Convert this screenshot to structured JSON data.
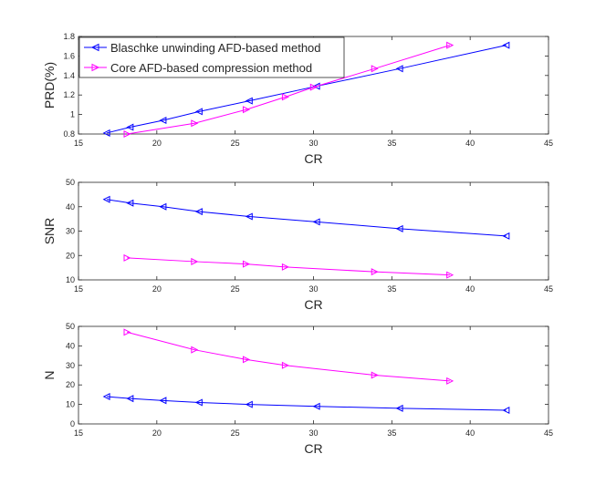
{
  "chart_data": [
    {
      "type": "line",
      "xlabel": "CR",
      "ylabel": "PRD(%)",
      "xlim": [
        15,
        45
      ],
      "ylim": [
        0.8,
        1.8
      ],
      "xticks": [
        "15",
        "20",
        "25",
        "30",
        "35",
        "40",
        "45"
      ],
      "yticks": [
        "0.8",
        "1",
        "1.2",
        "1.4",
        "1.6",
        "1.8"
      ],
      "grid": false,
      "legend": "top-left",
      "series": [
        {
          "name": "Blaschke unwinding AFD-based method",
          "color": "#0000ff",
          "marker": "triangle-left",
          "x": [
            16.8,
            18.3,
            20.4,
            22.7,
            25.9,
            30.2,
            35.5,
            42.3
          ],
          "y": [
            0.81,
            0.87,
            0.94,
            1.03,
            1.14,
            1.29,
            1.47,
            1.71
          ]
        },
        {
          "name": "Core AFD-based compression method",
          "color": "#ff00ff",
          "marker": "triangle-right",
          "x": [
            18.1,
            22.4,
            25.7,
            28.2,
            30.0,
            33.9,
            38.7
          ],
          "y": [
            0.8,
            0.91,
            1.05,
            1.18,
            1.28,
            1.47,
            1.71
          ]
        }
      ]
    },
    {
      "type": "line",
      "xlabel": "CR",
      "ylabel": "SNR",
      "xlim": [
        15,
        45
      ],
      "ylim": [
        10,
        50
      ],
      "xticks": [
        "15",
        "20",
        "25",
        "30",
        "35",
        "40",
        "45"
      ],
      "yticks": [
        "10",
        "20",
        "30",
        "40",
        "50"
      ],
      "grid": false,
      "series": [
        {
          "color": "#0000ff",
          "marker": "triangle-left",
          "x": [
            16.8,
            18.3,
            20.4,
            22.7,
            25.9,
            30.2,
            35.5,
            42.3
          ],
          "y": [
            43,
            41.5,
            40,
            38,
            36,
            33.8,
            31,
            28
          ]
        },
        {
          "color": "#ff00ff",
          "marker": "triangle-right",
          "x": [
            18.1,
            22.4,
            25.7,
            28.2,
            33.9,
            38.7
          ],
          "y": [
            19,
            17.5,
            16.5,
            15.3,
            13.3,
            12
          ]
        }
      ]
    },
    {
      "type": "line",
      "xlabel": "CR",
      "ylabel": "N",
      "xlim": [
        15,
        45
      ],
      "ylim": [
        0,
        50
      ],
      "xticks": [
        "15",
        "20",
        "25",
        "30",
        "35",
        "40",
        "45"
      ],
      "yticks": [
        "0",
        "10",
        "20",
        "30",
        "40",
        "50"
      ],
      "grid": false,
      "series": [
        {
          "color": "#0000ff",
          "marker": "triangle-left",
          "x": [
            16.8,
            18.3,
            20.4,
            22.7,
            25.9,
            30.2,
            35.5,
            42.3
          ],
          "y": [
            14,
            13,
            12,
            11,
            10,
            9,
            8,
            7
          ]
        },
        {
          "color": "#ff00ff",
          "marker": "triangle-right",
          "x": [
            18.1,
            22.4,
            25.7,
            28.2,
            33.9,
            38.7
          ],
          "y": [
            47,
            38,
            33,
            30,
            25,
            22
          ]
        }
      ]
    }
  ]
}
